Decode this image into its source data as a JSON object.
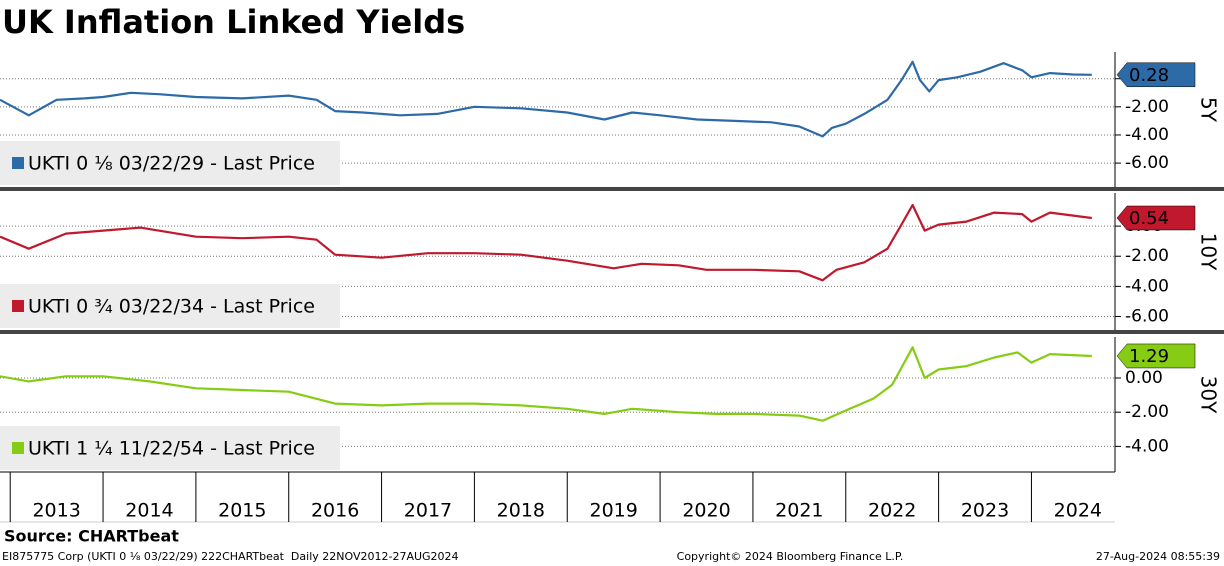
{
  "title": "UK Inflation Linked Yields",
  "source": "Source: CHARTbeat",
  "footer_left": "EI875775 Corp (UKTI 0 ⅛ 03/22/29) 222CHARTbeat  Daily 22NOV2012-27AUG2024",
  "footer_center": "Copyright© 2024 Bloomberg Finance L.P.",
  "footer_right": "27-Aug-2024 08:55:39",
  "chart_data": [
    {
      "type": "line",
      "y_label": "5Y",
      "xlim": [
        2012.89,
        2024.9
      ],
      "ylim": [
        -7.7,
        1.9
      ],
      "yticks": [
        {
          "value": 0,
          "label": "0.00"
        },
        {
          "value": -2,
          "label": "-2.00"
        },
        {
          "value": -4,
          "label": "-4.00"
        },
        {
          "value": -6,
          "label": "-6.00"
        }
      ],
      "grid": true,
      "last_value": 0.28,
      "series": [
        {
          "name": "UKTI 0 ⅛  03/22/29 - Last Price",
          "color": "#2c6aa8",
          "x": [
            2012.89,
            2013.2,
            2013.5,
            2013.8,
            2014.0,
            2014.3,
            2014.6,
            2015.0,
            2015.5,
            2016.0,
            2016.3,
            2016.5,
            2016.8,
            2017.2,
            2017.6,
            2018.0,
            2018.5,
            2019.0,
            2019.4,
            2019.7,
            2020.0,
            2020.4,
            2020.8,
            2021.2,
            2021.5,
            2021.75,
            2021.85,
            2022.0,
            2022.2,
            2022.45,
            2022.6,
            2022.72,
            2022.8,
            2022.9,
            2023.0,
            2023.2,
            2023.45,
            2023.7,
            2023.9,
            2024.0,
            2024.2,
            2024.45,
            2024.65
          ],
          "values": [
            -1.5,
            -2.6,
            -1.5,
            -1.4,
            -1.3,
            -1.0,
            -1.1,
            -1.3,
            -1.4,
            -1.2,
            -1.5,
            -2.3,
            -2.4,
            -2.6,
            -2.5,
            -2.0,
            -2.1,
            -2.4,
            -2.9,
            -2.4,
            -2.6,
            -2.9,
            -3.0,
            -3.1,
            -3.4,
            -4.1,
            -3.5,
            -3.2,
            -2.5,
            -1.5,
            -0.1,
            1.2,
            -0.1,
            -0.9,
            -0.1,
            0.1,
            0.5,
            1.1,
            0.6,
            0.1,
            0.4,
            0.3,
            0.28
          ]
        }
      ]
    },
    {
      "type": "line",
      "y_label": "10Y",
      "xlim": [
        2012.89,
        2024.9
      ],
      "ylim": [
        -6.9,
        2.2
      ],
      "yticks": [
        {
          "value": 0,
          "label": "0.00"
        },
        {
          "value": -2,
          "label": "-2.00"
        },
        {
          "value": -4,
          "label": "-4.00"
        },
        {
          "value": -6,
          "label": "-6.00"
        }
      ],
      "grid": true,
      "last_value": 0.54,
      "series": [
        {
          "name": "UKTI 0 ¾  03/22/34 - Last Price",
          "color": "#c0182c",
          "x": [
            2012.89,
            2013.2,
            2013.6,
            2014.0,
            2014.4,
            2015.0,
            2015.5,
            2016.0,
            2016.3,
            2016.5,
            2017.0,
            2017.5,
            2018.0,
            2018.5,
            2019.0,
            2019.5,
            2019.8,
            2020.2,
            2020.5,
            2021.0,
            2021.5,
            2021.75,
            2021.9,
            2022.2,
            2022.45,
            2022.6,
            2022.72,
            2022.85,
            2023.0,
            2023.3,
            2023.6,
            2023.9,
            2024.0,
            2024.2,
            2024.65
          ],
          "values": [
            -0.7,
            -1.5,
            -0.5,
            -0.3,
            -0.1,
            -0.7,
            -0.8,
            -0.7,
            -0.9,
            -1.9,
            -2.1,
            -1.8,
            -1.8,
            -1.9,
            -2.3,
            -2.8,
            -2.5,
            -2.6,
            -2.9,
            -2.9,
            -3.0,
            -3.6,
            -2.9,
            -2.4,
            -1.5,
            0.1,
            1.4,
            -0.3,
            0.1,
            0.3,
            0.9,
            0.8,
            0.3,
            0.9,
            0.54
          ]
        }
      ]
    },
    {
      "type": "line",
      "y_label": "30Y",
      "xlim": [
        2012.89,
        2024.9
      ],
      "ylim": [
        -5.5,
        2.4
      ],
      "yticks": [
        {
          "value": 0,
          "label": "0.00"
        },
        {
          "value": -2,
          "label": "-2.00"
        },
        {
          "value": -4,
          "label": "-4.00"
        }
      ],
      "grid": true,
      "last_value": 1.29,
      "xticks": [
        2013,
        2014,
        2015,
        2016,
        2017,
        2018,
        2019,
        2020,
        2021,
        2022,
        2023,
        2024
      ],
      "series": [
        {
          "name": "UKTI 1 ¼  11/22/54 - Last Price",
          "color": "#86cc14",
          "x": [
            2012.89,
            2013.2,
            2013.6,
            2014.0,
            2014.5,
            2015.0,
            2015.5,
            2016.0,
            2016.5,
            2017.0,
            2017.5,
            2018.0,
            2018.5,
            2019.0,
            2019.4,
            2019.7,
            2020.2,
            2020.6,
            2021.0,
            2021.5,
            2021.75,
            2022.0,
            2022.3,
            2022.5,
            2022.72,
            2022.85,
            2023.0,
            2023.3,
            2023.6,
            2023.85,
            2024.0,
            2024.2,
            2024.65
          ],
          "values": [
            0.1,
            -0.2,
            0.1,
            0.1,
            -0.2,
            -0.6,
            -0.7,
            -0.8,
            -1.5,
            -1.6,
            -1.5,
            -1.5,
            -1.6,
            -1.8,
            -2.1,
            -1.8,
            -2.0,
            -2.1,
            -2.1,
            -2.2,
            -2.5,
            -1.9,
            -1.2,
            -0.4,
            1.8,
            0.0,
            0.5,
            0.7,
            1.2,
            1.5,
            0.9,
            1.4,
            1.29
          ]
        }
      ]
    }
  ]
}
